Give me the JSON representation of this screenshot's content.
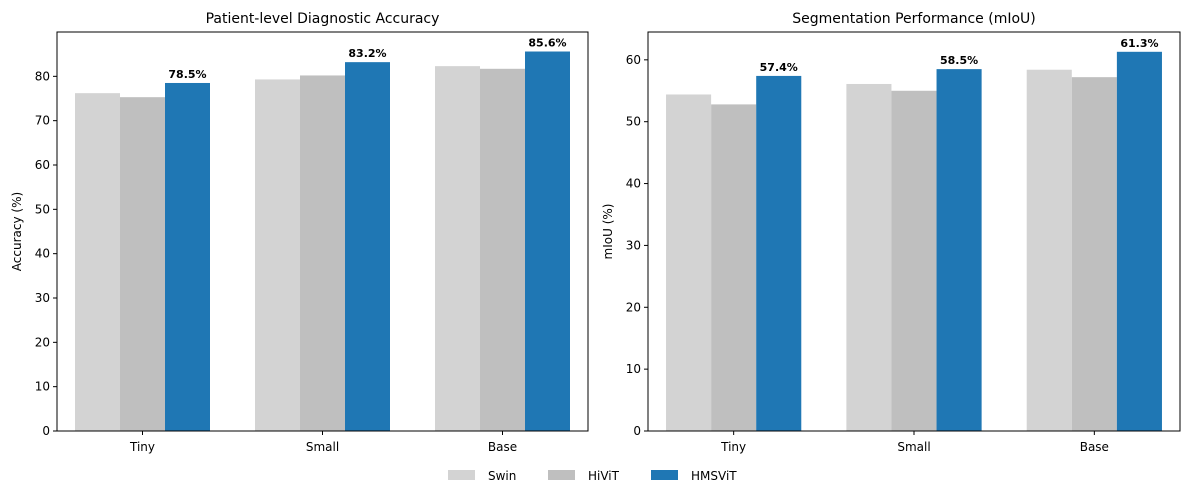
{
  "chart_data": [
    {
      "type": "bar",
      "title": "Patient-level Diagnostic Accuracy",
      "xlabel": "",
      "ylabel": "Accuracy (%)",
      "ylim": [
        0,
        90
      ],
      "yticks": [
        0,
        10,
        20,
        30,
        40,
        50,
        60,
        70,
        80
      ],
      "categories": [
        "Tiny",
        "Small",
        "Base"
      ],
      "series": [
        {
          "name": "Swin",
          "values": [
            76.2,
            79.3,
            82.3
          ],
          "color": "#d3d3d3"
        },
        {
          "name": "HiViT",
          "values": [
            75.3,
            80.2,
            81.7
          ],
          "color": "#bfbfbf"
        },
        {
          "name": "HMSViT",
          "values": [
            78.5,
            83.2,
            85.6
          ],
          "color": "#1f77b4"
        }
      ],
      "data_labels": {
        "series": "HMSViT",
        "labels": [
          "78.5%",
          "83.2%",
          "85.6%"
        ]
      },
      "grid": false
    },
    {
      "type": "bar",
      "title": "Segmentation Performance (mIoU)",
      "xlabel": "",
      "ylabel": "mIoU (%)",
      "ylim": [
        0,
        64.5
      ],
      "yticks": [
        0,
        10,
        20,
        30,
        40,
        50,
        60
      ],
      "categories": [
        "Tiny",
        "Small",
        "Base"
      ],
      "series": [
        {
          "name": "Swin",
          "values": [
            54.4,
            56.1,
            58.4
          ],
          "color": "#d3d3d3"
        },
        {
          "name": "HiViT",
          "values": [
            52.8,
            55.0,
            57.2
          ],
          "color": "#bfbfbf"
        },
        {
          "name": "HMSViT",
          "values": [
            57.4,
            58.5,
            61.3
          ],
          "color": "#1f77b4"
        }
      ],
      "data_labels": {
        "series": "HMSViT",
        "labels": [
          "57.4%",
          "58.5%",
          "61.3%"
        ]
      },
      "grid": false
    }
  ],
  "legend": {
    "placement": "bottom-center",
    "entries": [
      {
        "name": "Swin",
        "color": "#d3d3d3"
      },
      {
        "name": "HiViT",
        "color": "#bfbfbf"
      },
      {
        "name": "HMSViT",
        "color": "#1f77b4"
      }
    ]
  }
}
